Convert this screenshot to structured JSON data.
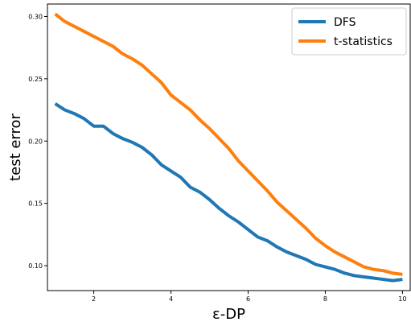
{
  "chart_data": {
    "type": "line",
    "xlabel": "ε-DP",
    "ylabel": "test error",
    "xlim": [
      0.8,
      10.2
    ],
    "ylim": [
      0.08,
      0.31
    ],
    "grid": false,
    "legend_position": "top-right",
    "xticks": [
      2,
      4,
      6,
      8,
      10
    ],
    "xtick_labels": [
      "2",
      "4",
      "6",
      "8",
      "10"
    ],
    "yticks": [
      0.1,
      0.15,
      0.2,
      0.25,
      0.3
    ],
    "ytick_labels": [
      "0.10",
      "0.15",
      "0.20",
      "0.25",
      "0.30"
    ],
    "series": [
      {
        "name": "DFS",
        "color": "#1f77b4",
        "x": [
          1.0,
          1.25,
          1.5,
          1.75,
          2.0,
          2.25,
          2.5,
          2.75,
          3.0,
          3.25,
          3.5,
          3.75,
          4.0,
          4.25,
          4.5,
          4.75,
          5.0,
          5.25,
          5.5,
          5.75,
          6.0,
          6.25,
          6.5,
          6.75,
          7.0,
          7.25,
          7.5,
          7.75,
          8.0,
          8.25,
          8.5,
          8.75,
          9.0,
          9.25,
          9.5,
          9.75,
          10.0
        ],
        "y": [
          0.23,
          0.225,
          0.222,
          0.218,
          0.212,
          0.212,
          0.206,
          0.202,
          0.199,
          0.195,
          0.189,
          0.181,
          0.176,
          0.171,
          0.163,
          0.159,
          0.153,
          0.146,
          0.14,
          0.135,
          0.129,
          0.123,
          0.12,
          0.115,
          0.111,
          0.108,
          0.105,
          0.101,
          0.099,
          0.097,
          0.094,
          0.092,
          0.091,
          0.09,
          0.089,
          0.088,
          0.089
        ]
      },
      {
        "name": "t-statistics",
        "color": "#ff7f0e",
        "x": [
          1.0,
          1.25,
          1.5,
          1.75,
          2.0,
          2.25,
          2.5,
          2.75,
          3.0,
          3.25,
          3.5,
          3.75,
          4.0,
          4.25,
          4.5,
          4.75,
          5.0,
          5.25,
          5.5,
          5.75,
          6.0,
          6.25,
          6.5,
          6.75,
          7.0,
          7.25,
          7.5,
          7.75,
          8.0,
          8.25,
          8.5,
          8.75,
          9.0,
          9.25,
          9.5,
          9.75,
          10.0
        ],
        "y": [
          0.302,
          0.296,
          0.292,
          0.288,
          0.284,
          0.28,
          0.276,
          0.27,
          0.266,
          0.261,
          0.254,
          0.247,
          0.237,
          0.231,
          0.225,
          0.217,
          0.21,
          0.202,
          0.194,
          0.184,
          0.176,
          0.168,
          0.16,
          0.151,
          0.144,
          0.137,
          0.13,
          0.122,
          0.116,
          0.111,
          0.107,
          0.103,
          0.099,
          0.097,
          0.096,
          0.094,
          0.093
        ]
      }
    ]
  }
}
